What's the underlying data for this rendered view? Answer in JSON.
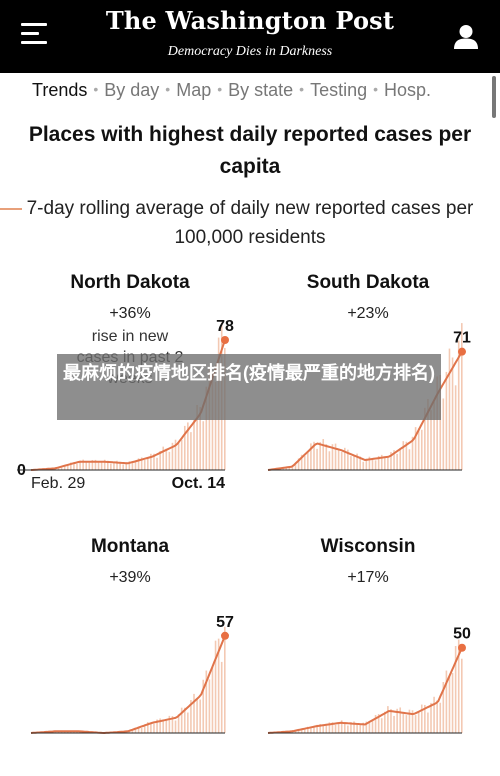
{
  "header": {
    "masthead": "The Washington Post",
    "tagline": "Democracy Dies in Darkness"
  },
  "nav": {
    "items": [
      "Trends",
      "By day",
      "Map",
      "By state",
      "Testing",
      "Hosp."
    ],
    "active_index": 0
  },
  "title": "Places with highest daily reported cases per capita",
  "subtitle_line1": "7-day rolling average of daily new reported cases per",
  "subtitle_line2": "100,000 residents",
  "annotation": "rise in new cases in past 2 weeks",
  "overlay_text": "最麻烦的疫情地区排名(疫情最严重的地方排名)",
  "colors": {
    "line": "#e0744a",
    "bars": "#f3c9b3",
    "dot": "#e86f42"
  },
  "chart_data": [
    {
      "type": "line",
      "title": "North Dakota",
      "subtitle": "+36%",
      "x_start_label": "Feb. 29",
      "x_end_label": "Oct. 14",
      "y_zero_label": "0",
      "end_value": 78,
      "ylim": [
        0,
        78
      ],
      "x": [
        "Feb. 29",
        "Mar",
        "Apr",
        "May",
        "Jun",
        "Jul",
        "Aug",
        "Sep",
        "Oct. 14"
      ],
      "values": [
        0,
        1,
        5,
        5,
        4,
        8,
        15,
        34,
        78
      ]
    },
    {
      "type": "line",
      "title": "South Dakota",
      "subtitle": "+23%",
      "end_value": 71,
      "ylim": [
        0,
        78
      ],
      "x": [
        "Feb. 29",
        "Mar",
        "Apr",
        "May",
        "Jun",
        "Jul",
        "Aug",
        "Sep",
        "Oct. 14"
      ],
      "values": [
        0,
        2,
        16,
        12,
        6,
        8,
        18,
        46,
        71
      ]
    },
    {
      "type": "line",
      "title": "Montana",
      "subtitle": "+39%",
      "end_value": 57,
      "ylim": [
        0,
        78
      ],
      "x": [
        "Feb. 29",
        "Mar",
        "Apr",
        "May",
        "Jun",
        "Jul",
        "Aug",
        "Sep",
        "Oct. 14"
      ],
      "values": [
        0,
        1,
        1,
        0,
        1,
        6,
        9,
        22,
        57
      ]
    },
    {
      "type": "line",
      "title": "Wisconsin",
      "subtitle": "+17%",
      "end_value": 50,
      "ylim": [
        0,
        78
      ],
      "x": [
        "Feb. 29",
        "Mar",
        "Apr",
        "May",
        "Jun",
        "Jul",
        "Aug",
        "Sep",
        "Oct. 14"
      ],
      "values": [
        0,
        1,
        4,
        6,
        5,
        13,
        11,
        18,
        50
      ]
    }
  ]
}
